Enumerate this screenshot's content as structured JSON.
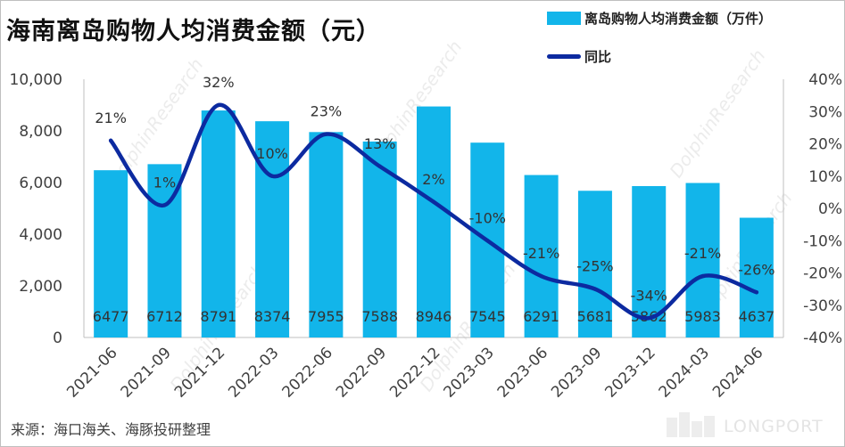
{
  "title": "海南离岛购物人均消费金额（元）",
  "source": "来源：海口海关、海豚投研整理",
  "brand": "LONGPORT",
  "watermark": {
    "primary": "DolphinResearch",
    "secondary": "海豚投研"
  },
  "legend": {
    "bar": "离岛购物人均消费金额（万件）",
    "line": "同比"
  },
  "colors": {
    "bar": "#12b5ea",
    "line": "#0c2aa0",
    "axis": "#404040"
  },
  "chart_data": {
    "type": "bar",
    "categories": [
      "2021-06",
      "2021-09",
      "2021-12",
      "2022-03",
      "2022-06",
      "2022-09",
      "2022-12",
      "2023-03",
      "2023-06",
      "2023-09",
      "2023-12",
      "2024-03",
      "2024-06"
    ],
    "series": [
      {
        "name": "离岛购物人均消费金额（万件）",
        "type": "bar",
        "axis": "left",
        "values": [
          6477,
          6712,
          8791,
          8374,
          7955,
          7588,
          8946,
          7545,
          6291,
          5681,
          5862,
          5983,
          4637
        ]
      },
      {
        "name": "同比",
        "type": "line",
        "axis": "right",
        "values": [
          21,
          1,
          32,
          10,
          23,
          13,
          2,
          -10,
          -21,
          -25,
          -34,
          -21,
          -26
        ],
        "labels": [
          "21%",
          "1%",
          "32%",
          "10%",
          "23%",
          "13%",
          "2%",
          "-10%",
          "-21%",
          "-25%",
          "-34%",
          "-21%",
          "-26%"
        ]
      }
    ],
    "left_axis": {
      "ylim": [
        0,
        10000
      ],
      "ticks": [
        0,
        2000,
        4000,
        6000,
        8000,
        10000
      ],
      "tick_labels": [
        "0",
        "2,000",
        "4,000",
        "6,000",
        "8,000",
        "10,000"
      ]
    },
    "right_axis": {
      "ylim": [
        -40,
        40
      ],
      "ticks": [
        -40,
        -30,
        -20,
        -10,
        0,
        10,
        20,
        30,
        40
      ],
      "tick_labels": [
        "-40%",
        "-30%",
        "-20%",
        "-10%",
        "0%",
        "10%",
        "20%",
        "30%",
        "40%"
      ]
    },
    "grid": false,
    "legend_position": "top-right"
  }
}
